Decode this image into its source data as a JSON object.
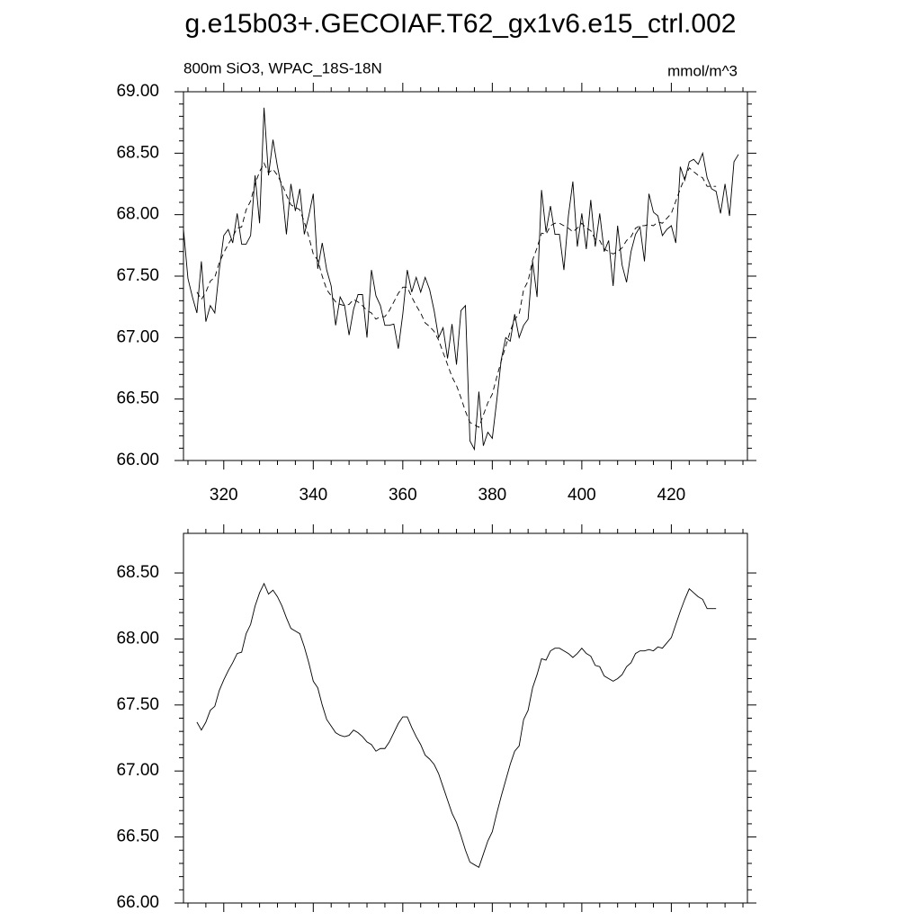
{
  "chart_data": [
    {
      "type": "line",
      "title": "g.e15b03+.GECOIAF.T62_gx1v6.e15_ctrl.002",
      "subtitle": "800m SiO3, WPAC_18S-18N",
      "units": "mmol/m^3",
      "xlim": [
        311,
        437
      ],
      "xticks": [
        320,
        340,
        360,
        380,
        400,
        420
      ],
      "ylim": [
        66,
        69
      ],
      "yticks": [
        {
          "value": 66,
          "label": "66.00"
        },
        {
          "value": 66.5,
          "label": "66.50"
        },
        {
          "value": 67,
          "label": "67.00"
        },
        {
          "value": 67.5,
          "label": "67.50"
        },
        {
          "value": 68,
          "label": "68.00"
        },
        {
          "value": 68.5,
          "label": "68.50"
        },
        {
          "value": 69,
          "label": "69.00"
        }
      ],
      "xtick_labels": true,
      "series": [
        {
          "color": "#000000",
          "style": "solid",
          "x": [
            311,
            312,
            313,
            314,
            315,
            316,
            317,
            318,
            319,
            320,
            321,
            322,
            323,
            324,
            325,
            326,
            327,
            328,
            329,
            330,
            331,
            332,
            333,
            334,
            335,
            336,
            337,
            338,
            339,
            340,
            341,
            342,
            343,
            344,
            345,
            346,
            347,
            348,
            349,
            350,
            351,
            352,
            353,
            354,
            355,
            356,
            357,
            358,
            359,
            360,
            361,
            362,
            363,
            364,
            365,
            366,
            367,
            368,
            369,
            370,
            371,
            372,
            373,
            374,
            375,
            376,
            377,
            378,
            379,
            380,
            381,
            382,
            383,
            384,
            385,
            386,
            387,
            388,
            389,
            390,
            391,
            392,
            393,
            394,
            395,
            396,
            397,
            398,
            399,
            400,
            401,
            402,
            403,
            404,
            405,
            406,
            407,
            408,
            409,
            410,
            411,
            412,
            413,
            414,
            415,
            416,
            417,
            418,
            419,
            420,
            421,
            422,
            423,
            424,
            425,
            426,
            427,
            428,
            429,
            430,
            431,
            432,
            433,
            434,
            435
          ],
          "values": [
            67.88,
            67.48,
            67.33,
            67.2,
            67.62,
            67.13,
            67.26,
            67.2,
            67.55,
            67.83,
            67.88,
            67.77,
            68.01,
            67.76,
            67.76,
            67.83,
            68.32,
            67.93,
            68.87,
            68.32,
            68.61,
            68.39,
            68.21,
            67.84,
            68.25,
            68.03,
            68.21,
            67.84,
            67.99,
            68.17,
            67.56,
            67.77,
            67.55,
            67.42,
            67.1,
            67.33,
            67.26,
            67.02,
            67.23,
            67.35,
            67.35,
            67.0,
            67.55,
            67.34,
            67.26,
            67.1,
            67.1,
            67.11,
            66.91,
            67.19,
            67.55,
            67.37,
            67.49,
            67.37,
            67.49,
            67.39,
            67.22,
            67.0,
            67.08,
            66.83,
            67.11,
            66.78,
            67.22,
            67.26,
            66.16,
            66.09,
            66.56,
            66.12,
            66.23,
            66.18,
            66.49,
            66.82,
            67.0,
            66.97,
            67.19,
            67.0,
            67.1,
            67.15,
            67.62,
            67.33,
            68.2,
            67.86,
            68.07,
            67.84,
            67.84,
            67.55,
            67.99,
            68.27,
            67.74,
            68.01,
            67.72,
            68.12,
            67.74,
            68.01,
            67.7,
            67.79,
            67.42,
            67.91,
            67.59,
            67.45,
            67.7,
            67.84,
            67.9,
            67.62,
            68.17,
            68.02,
            67.99,
            67.83,
            67.88,
            67.91,
            67.77,
            68.39,
            68.28,
            68.43,
            68.45,
            68.41,
            68.5,
            68.3,
            68.21,
            68.19,
            68.01,
            68.25,
            67.99,
            68.43,
            68.49
          ]
        },
        {
          "color": "#000000",
          "style": "dashed",
          "x": [
            314,
            315,
            316,
            317,
            318,
            319,
            320,
            321,
            322,
            323,
            324,
            325,
            326,
            327,
            328,
            329,
            330,
            331,
            332,
            333,
            334,
            335,
            336,
            337,
            338,
            339,
            340,
            341,
            342,
            343,
            344,
            345,
            346,
            347,
            348,
            349,
            350,
            351,
            352,
            353,
            354,
            355,
            356,
            357,
            358,
            359,
            360,
            361,
            362,
            363,
            364,
            365,
            366,
            367,
            368,
            369,
            370,
            371,
            372,
            373,
            374,
            375,
            376,
            377,
            378,
            379,
            380,
            381,
            382,
            383,
            384,
            385,
            386,
            387,
            388,
            389,
            390,
            391,
            392,
            393,
            394,
            395,
            396,
            397,
            398,
            399,
            400,
            401,
            402,
            403,
            404,
            405,
            406,
            407,
            408,
            409,
            410,
            411,
            412,
            413,
            414,
            415,
            416,
            417,
            418,
            419,
            420,
            421,
            422,
            423,
            424,
            425,
            426,
            427,
            428,
            429,
            430
          ],
          "values": [
            67.37,
            67.31,
            67.37,
            67.46,
            67.49,
            67.61,
            67.69,
            67.76,
            67.82,
            67.89,
            67.9,
            68.04,
            68.11,
            68.25,
            68.35,
            68.42,
            68.34,
            68.37,
            68.32,
            68.25,
            68.16,
            68.08,
            68.06,
            68.04,
            67.94,
            67.82,
            67.68,
            67.63,
            67.5,
            67.39,
            67.34,
            67.29,
            67.27,
            67.26,
            67.27,
            67.31,
            67.29,
            67.26,
            67.22,
            67.2,
            67.15,
            67.17,
            67.17,
            67.22,
            67.29,
            67.36,
            67.41,
            67.41,
            67.33,
            67.26,
            67.2,
            67.12,
            67.09,
            67.05,
            66.98,
            66.88,
            66.78,
            66.68,
            66.61,
            66.51,
            66.4,
            66.31,
            66.29,
            66.27,
            66.37,
            66.47,
            66.54,
            66.68,
            66.81,
            66.93,
            67.05,
            67.15,
            67.19,
            67.39,
            67.46,
            67.63,
            67.73,
            67.85,
            67.84,
            67.91,
            67.93,
            67.93,
            67.91,
            67.89,
            67.86,
            67.89,
            67.93,
            67.89,
            67.87,
            67.8,
            67.79,
            67.72,
            67.7,
            67.68,
            67.7,
            67.73,
            67.79,
            67.82,
            67.89,
            67.91,
            67.91,
            67.92,
            67.91,
            67.94,
            67.93,
            67.97,
            68.01,
            68.11,
            68.21,
            68.3,
            68.38,
            68.35,
            68.32,
            68.3,
            68.23,
            68.23,
            68.23
          ]
        }
      ]
    },
    {
      "type": "line",
      "xlim": [
        311,
        437
      ],
      "xticks": [
        320,
        340,
        360,
        380,
        400,
        420
      ],
      "xtick_labels": false,
      "ylim": [
        66,
        68.8
      ],
      "yticks": [
        {
          "value": 66,
          "label": "66.00"
        },
        {
          "value": 66.5,
          "label": "66.50"
        },
        {
          "value": 67,
          "label": "67.00"
        },
        {
          "value": 67.5,
          "label": "67.50"
        },
        {
          "value": 68,
          "label": "68.00"
        },
        {
          "value": 68.5,
          "label": "68.50"
        }
      ],
      "series": [
        {
          "color": "#000000",
          "style": "solid",
          "x": [
            314,
            315,
            316,
            317,
            318,
            319,
            320,
            321,
            322,
            323,
            324,
            325,
            326,
            327,
            328,
            329,
            330,
            331,
            332,
            333,
            334,
            335,
            336,
            337,
            338,
            339,
            340,
            341,
            342,
            343,
            344,
            345,
            346,
            347,
            348,
            349,
            350,
            351,
            352,
            353,
            354,
            355,
            356,
            357,
            358,
            359,
            360,
            361,
            362,
            363,
            364,
            365,
            366,
            367,
            368,
            369,
            370,
            371,
            372,
            373,
            374,
            375,
            376,
            377,
            378,
            379,
            380,
            381,
            382,
            383,
            384,
            385,
            386,
            387,
            388,
            389,
            390,
            391,
            392,
            393,
            394,
            395,
            396,
            397,
            398,
            399,
            400,
            401,
            402,
            403,
            404,
            405,
            406,
            407,
            408,
            409,
            410,
            411,
            412,
            413,
            414,
            415,
            416,
            417,
            418,
            419,
            420,
            421,
            422,
            423,
            424,
            425,
            426,
            427,
            428,
            429,
            430
          ],
          "values": [
            67.37,
            67.31,
            67.37,
            67.46,
            67.49,
            67.61,
            67.69,
            67.76,
            67.82,
            67.89,
            67.9,
            68.04,
            68.11,
            68.25,
            68.35,
            68.42,
            68.34,
            68.37,
            68.32,
            68.25,
            68.16,
            68.08,
            68.06,
            68.04,
            67.94,
            67.82,
            67.68,
            67.63,
            67.5,
            67.39,
            67.34,
            67.29,
            67.27,
            67.26,
            67.27,
            67.31,
            67.29,
            67.26,
            67.22,
            67.2,
            67.15,
            67.17,
            67.17,
            67.22,
            67.29,
            67.36,
            67.41,
            67.41,
            67.33,
            67.26,
            67.2,
            67.12,
            67.09,
            67.05,
            66.98,
            66.88,
            66.78,
            66.68,
            66.61,
            66.51,
            66.4,
            66.31,
            66.29,
            66.27,
            66.37,
            66.47,
            66.54,
            66.68,
            66.81,
            66.93,
            67.05,
            67.15,
            67.19,
            67.39,
            67.46,
            67.63,
            67.73,
            67.85,
            67.84,
            67.91,
            67.93,
            67.93,
            67.91,
            67.89,
            67.86,
            67.89,
            67.93,
            67.89,
            67.87,
            67.8,
            67.79,
            67.72,
            67.7,
            67.68,
            67.7,
            67.73,
            67.79,
            67.82,
            67.89,
            67.91,
            67.91,
            67.92,
            67.91,
            67.94,
            67.93,
            67.97,
            68.01,
            68.11,
            68.21,
            68.3,
            68.38,
            68.35,
            68.32,
            68.3,
            68.23,
            68.23,
            68.23
          ]
        }
      ]
    }
  ]
}
